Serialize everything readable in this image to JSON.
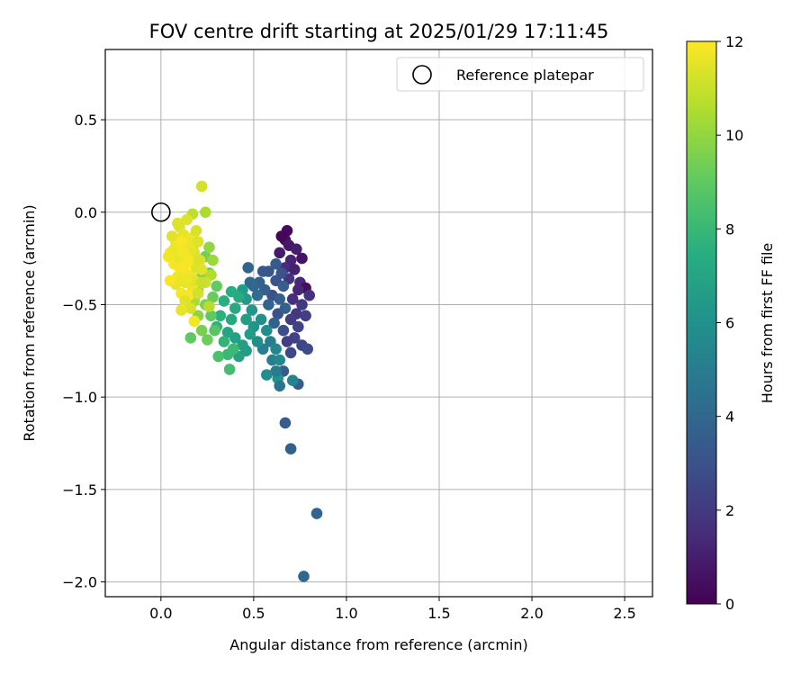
{
  "chart_data": {
    "type": "scatter",
    "title": "FOV centre drift starting at 2025/01/29 17:11:45",
    "xlabel": "Angular distance from reference (arcmin)",
    "ylabel": "Rotation from reference (arcmin)",
    "xlim": [
      -0.3,
      2.65
    ],
    "ylim": [
      -2.08,
      0.88
    ],
    "xticks": [
      0.0,
      0.5,
      1.0,
      1.5,
      2.0,
      2.5
    ],
    "xtick_labels": [
      "0.0",
      "0.5",
      "1.0",
      "1.5",
      "2.0",
      "2.5"
    ],
    "yticks": [
      0.5,
      0.0,
      -0.5,
      -1.0,
      -1.5,
      -2.0
    ],
    "ytick_labels": [
      "0.5",
      "0.0",
      "−0.5",
      "−1.0",
      "−1.5",
      "−2.0"
    ],
    "grid": true,
    "legend": {
      "placement": "top-right",
      "entries": [
        {
          "label": "Reference platepar",
          "marker": "open-circle"
        }
      ]
    },
    "colorbar": {
      "label": "Hours from first FF file",
      "colormap": "viridis",
      "range": [
        0,
        12
      ],
      "ticks": [
        0,
        2,
        4,
        6,
        8,
        10,
        12
      ],
      "tick_labels": [
        "0",
        "2",
        "4",
        "6",
        "8",
        "10",
        "12"
      ]
    },
    "reference_point": {
      "x": 0.0,
      "y": 0.0
    },
    "series": [
      {
        "points": [
          [
            0.68,
            -0.1,
            0.3
          ],
          [
            0.67,
            -0.15,
            0.5
          ],
          [
            0.65,
            -0.13,
            0.2
          ],
          [
            0.69,
            -0.18,
            0.8
          ],
          [
            0.73,
            -0.2,
            1.0
          ],
          [
            0.76,
            -0.25,
            0.6
          ],
          [
            0.7,
            -0.26,
            1.2
          ],
          [
            0.64,
            -0.22,
            0.9
          ],
          [
            0.67,
            -0.3,
            1.5
          ],
          [
            0.72,
            -0.31,
            1.1
          ],
          [
            0.75,
            -0.38,
            1.4
          ],
          [
            0.78,
            -0.41,
            0.4
          ],
          [
            0.8,
            -0.45,
            1.7
          ],
          [
            0.74,
            -0.42,
            1.3
          ],
          [
            0.69,
            -0.36,
            1.8
          ],
          [
            0.71,
            -0.47,
            1.6
          ],
          [
            0.76,
            -0.5,
            2.0
          ],
          [
            0.73,
            -0.55,
            1.9
          ],
          [
            0.78,
            -0.56,
            2.2
          ],
          [
            0.7,
            -0.58,
            2.1
          ],
          [
            0.74,
            -0.62,
            2.4
          ],
          [
            0.72,
            -0.68,
            2.3
          ],
          [
            0.76,
            -0.72,
            2.5
          ],
          [
            0.7,
            -0.76,
            2.6
          ],
          [
            0.68,
            -0.7,
            2.2
          ],
          [
            0.79,
            -0.74,
            2.7
          ],
          [
            0.66,
            -0.64,
            2.8
          ],
          [
            0.63,
            -0.55,
            2.9
          ],
          [
            0.6,
            -0.45,
            3.0
          ],
          [
            0.62,
            -0.37,
            3.1
          ],
          [
            0.58,
            -0.32,
            3.2
          ],
          [
            0.55,
            -0.32,
            3.3
          ],
          [
            0.62,
            -0.28,
            3.4
          ],
          [
            0.65,
            -0.33,
            3.0
          ],
          [
            0.66,
            -0.4,
            3.5
          ],
          [
            0.64,
            -0.47,
            3.6
          ],
          [
            0.67,
            -0.52,
            3.7
          ],
          [
            0.61,
            -0.6,
            3.8
          ],
          [
            0.58,
            -0.5,
            3.9
          ],
          [
            0.56,
            -0.42,
            3.6
          ],
          [
            0.53,
            -0.38,
            3.7
          ],
          [
            0.5,
            -0.4,
            4.0
          ],
          [
            0.48,
            -0.38,
            4.1
          ],
          [
            0.52,
            -0.45,
            4.2
          ],
          [
            0.47,
            -0.3,
            3.8
          ],
          [
            0.66,
            -0.86,
            3.4
          ],
          [
            0.67,
            -1.14,
            3.5
          ],
          [
            0.7,
            -1.28,
            3.7
          ],
          [
            0.74,
            -0.93,
            3.5
          ],
          [
            0.84,
            -1.63,
            3.9
          ],
          [
            0.77,
            -1.97,
            4.0
          ],
          [
            0.63,
            -0.9,
            6.2
          ],
          [
            0.64,
            -0.94,
            4.6
          ],
          [
            0.71,
            -0.91,
            5.4
          ],
          [
            0.62,
            -0.86,
            4.9
          ],
          [
            0.6,
            -0.8,
            5.1
          ],
          [
            0.57,
            -0.88,
            5.8
          ],
          [
            0.59,
            -0.7,
            5.0
          ],
          [
            0.62,
            -0.74,
            5.4
          ],
          [
            0.64,
            -0.8,
            5.6
          ],
          [
            0.55,
            -0.74,
            5.2
          ],
          [
            0.57,
            -0.64,
            5.8
          ],
          [
            0.52,
            -0.7,
            5.9
          ],
          [
            0.54,
            -0.58,
            6.0
          ],
          [
            0.5,
            -0.62,
            6.2
          ],
          [
            0.49,
            -0.53,
            6.3
          ],
          [
            0.46,
            -0.47,
            6.4
          ],
          [
            0.44,
            -0.42,
            6.5
          ],
          [
            0.46,
            -0.58,
            6.6
          ],
          [
            0.48,
            -0.66,
            6.5
          ],
          [
            0.44,
            -0.72,
            6.7
          ],
          [
            0.4,
            -0.68,
            6.8
          ],
          [
            0.42,
            -0.78,
            6.9
          ],
          [
            0.46,
            -0.75,
            6.6
          ],
          [
            0.36,
            -0.65,
            7.0
          ],
          [
            0.38,
            -0.58,
            7.1
          ],
          [
            0.4,
            -0.52,
            7.2
          ],
          [
            0.42,
            -0.46,
            7.3
          ],
          [
            0.38,
            -0.43,
            7.4
          ],
          [
            0.34,
            -0.48,
            7.5
          ],
          [
            0.32,
            -0.56,
            7.6
          ],
          [
            0.3,
            -0.62,
            7.7
          ],
          [
            0.34,
            -0.7,
            7.8
          ],
          [
            0.36,
            -0.77,
            8.0
          ],
          [
            0.39,
            -0.74,
            8.1
          ],
          [
            0.37,
            -0.85,
            8.3
          ],
          [
            0.31,
            -0.78,
            8.5
          ],
          [
            0.29,
            -0.64,
            8.8
          ],
          [
            0.27,
            -0.56,
            9.0
          ],
          [
            0.28,
            -0.46,
            9.2
          ],
          [
            0.3,
            -0.4,
            9.1
          ],
          [
            0.26,
            -0.33,
            8.9
          ],
          [
            0.24,
            -0.24,
            9.4
          ],
          [
            0.22,
            -0.35,
            9.7
          ],
          [
            0.24,
            -0.5,
            9.6
          ],
          [
            0.2,
            -0.56,
            9.9
          ],
          [
            0.22,
            -0.64,
            9.5
          ],
          [
            0.25,
            -0.69,
            9.3
          ],
          [
            0.16,
            -0.68,
            9.0
          ],
          [
            0.26,
            -0.19,
            10.0
          ],
          [
            0.28,
            -0.26,
            10.2
          ],
          [
            0.2,
            -0.42,
            10.3
          ],
          [
            0.18,
            -0.48,
            10.4
          ],
          [
            0.17,
            -0.2,
            10.5
          ],
          [
            0.2,
            -0.26,
            10.6
          ],
          [
            0.24,
            -0.0,
            10.5
          ],
          [
            0.22,
            0.14,
            11.2
          ],
          [
            0.17,
            -0.01,
            10.8
          ],
          [
            0.27,
            -0.34,
            10.6
          ],
          [
            0.26,
            -0.51,
            10.7
          ],
          [
            0.14,
            -0.04,
            11.4
          ],
          [
            0.1,
            -0.08,
            11.5
          ],
          [
            0.12,
            -0.12,
            11.6
          ],
          [
            0.08,
            -0.16,
            11.7
          ],
          [
            0.05,
            -0.22,
            11.8
          ],
          [
            0.07,
            -0.28,
            11.9
          ],
          [
            0.1,
            -0.25,
            11.6
          ],
          [
            0.13,
            -0.18,
            11.5
          ],
          [
            0.16,
            -0.14,
            11.7
          ],
          [
            0.19,
            -0.1,
            11.3
          ],
          [
            0.2,
            -0.16,
            11.4
          ],
          [
            0.18,
            -0.22,
            11.5
          ],
          [
            0.15,
            -0.26,
            11.8
          ],
          [
            0.12,
            -0.31,
            11.9
          ],
          [
            0.09,
            -0.35,
            11.7
          ],
          [
            0.13,
            -0.38,
            11.6
          ],
          [
            0.16,
            -0.34,
            11.8
          ],
          [
            0.19,
            -0.3,
            11.4
          ],
          [
            0.21,
            -0.26,
            11.3
          ],
          [
            0.22,
            -0.31,
            11.5
          ],
          [
            0.24,
            -0.38,
            11.1
          ],
          [
            0.17,
            -0.41,
            11.7
          ],
          [
            0.15,
            -0.45,
            11.9
          ],
          [
            0.11,
            -0.44,
            11.8
          ],
          [
            0.08,
            -0.39,
            11.6
          ],
          [
            0.05,
            -0.37,
            11.9
          ],
          [
            0.04,
            -0.24,
            11.8
          ],
          [
            0.06,
            -0.13,
            11.5
          ],
          [
            0.09,
            -0.06,
            11.4
          ],
          [
            0.16,
            -0.2,
            11.6
          ],
          [
            0.14,
            -0.28,
            11.9
          ],
          [
            0.12,
            -0.22,
            11.8
          ],
          [
            0.18,
            -0.37,
            11.5
          ],
          [
            0.2,
            -0.44,
            11.2
          ],
          [
            0.13,
            -0.48,
            11.5
          ],
          [
            0.16,
            -0.52,
            11.3
          ],
          [
            0.11,
            -0.53,
            11.6
          ],
          [
            0.18,
            -0.59,
            11.8
          ],
          [
            0.22,
            -0.38,
            11.0
          ],
          [
            0.1,
            -0.3,
            11.9
          ],
          [
            0.07,
            -0.2,
            11.7
          ],
          [
            0.11,
            -0.16,
            11.9
          ],
          [
            0.14,
            -0.36,
            11.7
          ]
        ]
      }
    ]
  }
}
